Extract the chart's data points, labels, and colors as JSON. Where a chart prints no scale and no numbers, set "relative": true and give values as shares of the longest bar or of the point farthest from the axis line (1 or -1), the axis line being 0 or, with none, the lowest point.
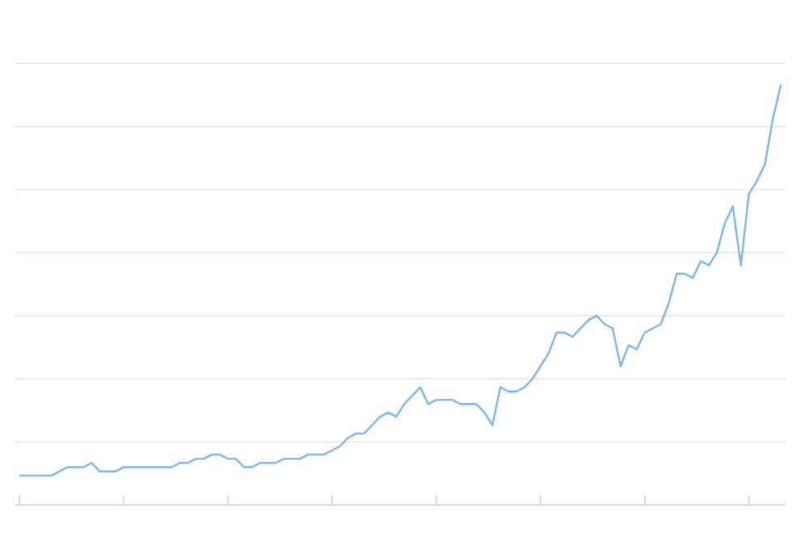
{
  "chart_data": {
    "type": "line",
    "relative": true,
    "grid": "y",
    "marker": "none",
    "line_style": "solid",
    "categories": [
      null,
      null,
      null,
      null,
      null,
      null,
      null,
      null,
      null,
      null,
      null,
      null,
      null,
      null,
      null,
      null,
      null,
      null,
      null,
      null,
      null,
      null,
      null,
      null,
      null,
      null,
      null,
      null,
      null,
      null,
      null,
      null,
      null,
      null,
      null,
      null,
      null,
      null,
      null,
      null,
      null,
      null,
      null,
      null,
      null,
      null,
      null,
      null,
      null,
      null,
      null,
      null,
      null,
      null,
      null,
      null,
      null,
      null,
      null,
      null,
      null,
      null,
      null,
      null,
      null,
      null,
      null,
      null,
      null,
      null,
      null,
      null,
      null,
      null,
      null,
      null,
      null,
      null,
      null,
      null,
      null,
      null,
      null,
      null,
      null,
      null,
      null,
      null,
      null,
      null,
      null,
      null,
      null,
      null,
      null,
      null
    ],
    "series": [
      {
        "color": "#7cb5ec",
        "values": [
          0.07,
          0.07,
          0.07,
          0.07,
          0.07,
          0.08,
          0.09,
          0.09,
          0.09,
          0.1,
          0.08,
          0.08,
          0.08,
          0.09,
          0.09,
          0.09,
          0.09,
          0.09,
          0.09,
          0.09,
          0.1,
          0.1,
          0.11,
          0.11,
          0.12,
          0.12,
          0.11,
          0.11,
          0.09,
          0.09,
          0.1,
          0.1,
          0.1,
          0.11,
          0.11,
          0.11,
          0.12,
          0.12,
          0.12,
          0.13,
          0.14,
          0.16,
          0.17,
          0.17,
          0.19,
          0.21,
          0.22,
          0.21,
          0.24,
          0.26,
          0.28,
          0.24,
          0.25,
          0.25,
          0.25,
          0.24,
          0.24,
          0.24,
          0.22,
          0.19,
          0.28,
          0.27,
          0.27,
          0.28,
          0.3,
          0.33,
          0.36,
          0.41,
          0.41,
          0.4,
          0.42,
          0.44,
          0.45,
          0.43,
          0.42,
          0.33,
          0.38,
          0.37,
          0.41,
          0.42,
          0.43,
          0.48,
          0.55,
          0.55,
          0.54,
          0.58,
          0.57,
          0.6,
          0.67,
          0.71,
          0.57,
          0.74,
          0.77,
          0.81,
          0.92,
          1
        ]
      }
    ]
  }
}
